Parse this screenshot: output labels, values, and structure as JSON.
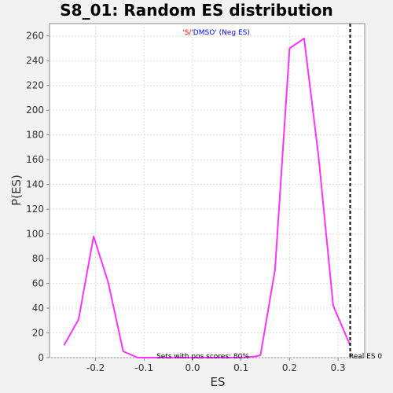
{
  "colors": {
    "series_line": "#ff33ff",
    "subtitle_red": "#ff0000",
    "subtitle_blue": "#0000ff",
    "real_es_line": "#000000"
  },
  "chart_data": {
    "type": "line",
    "title": "S8_01: Random ES distribution",
    "subtitle_parts": [
      "'S/",
      "'DMSO' (Neg ES)"
    ],
    "xlabel": "ES",
    "ylabel": "P(ES)",
    "xlim": [
      -0.295,
      0.355
    ],
    "ylim": [
      0,
      270
    ],
    "xticks": [
      -0.2,
      -0.1,
      0.0,
      0.1,
      0.2,
      0.3
    ],
    "xtick_labels": [
      "-0.2",
      "-0.1",
      "0.0",
      "0.1",
      "0.2",
      "0.3"
    ],
    "yticks": [
      0,
      20,
      40,
      60,
      80,
      100,
      120,
      140,
      160,
      180,
      200,
      220,
      240,
      260
    ],
    "ytick_labels": [
      "0",
      "20",
      "40",
      "60",
      "80",
      "100",
      "120",
      "140",
      "160",
      "180",
      "200",
      "220",
      "240",
      "260"
    ],
    "grid": true,
    "series": [
      {
        "x": [
          -0.265,
          -0.235,
          -0.204,
          -0.174,
          -0.143,
          -0.113,
          -0.082,
          -0.052,
          -0.021,
          0.009,
          0.04,
          0.07,
          0.101,
          0.131,
          0.14,
          0.17,
          0.2,
          0.23,
          0.26,
          0.29,
          0.325
        ],
        "y": [
          10,
          31,
          98,
          61,
          5,
          0,
          0,
          0,
          0,
          0,
          0,
          0,
          0,
          1,
          2,
          71,
          250,
          258,
          162,
          42,
          10
        ]
      }
    ],
    "real_es": {
      "x": 0.325,
      "label": "Real ES 0"
    },
    "annotation": "Sets with pos scores: 80%"
  }
}
